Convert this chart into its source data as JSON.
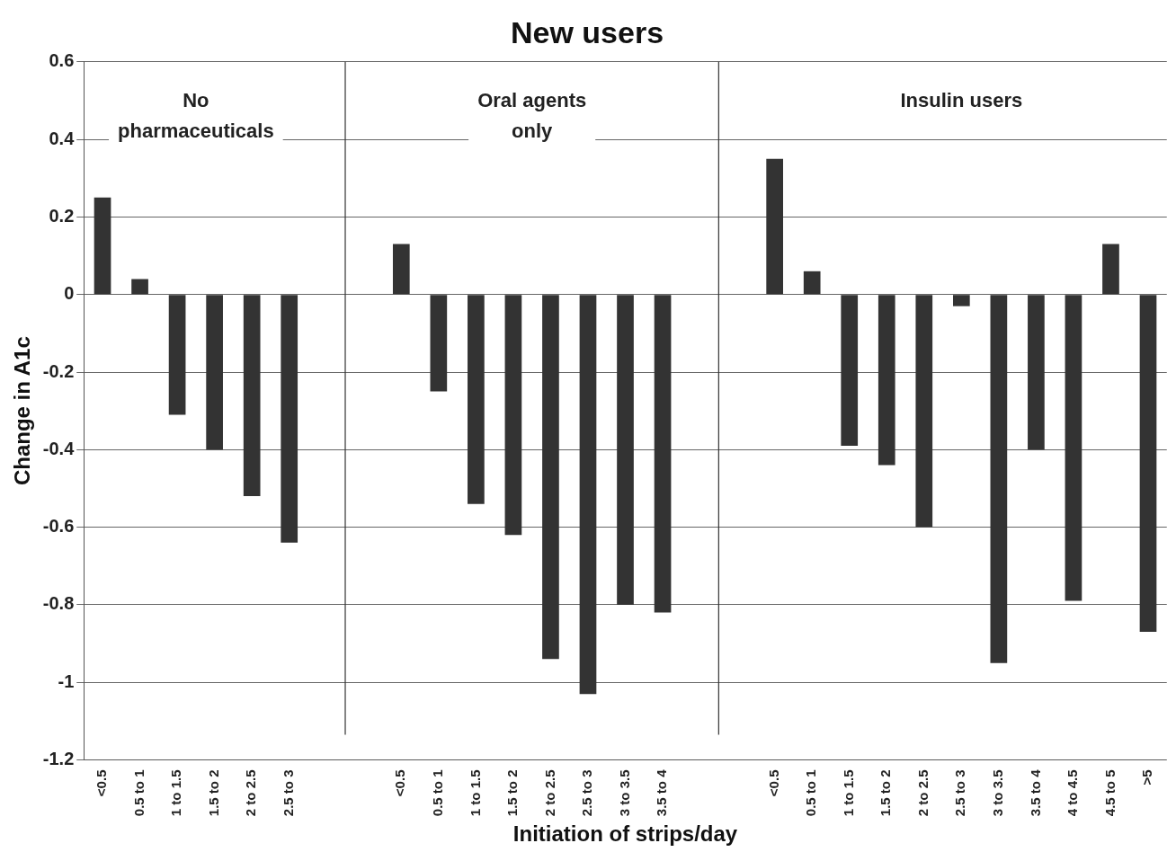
{
  "chart_data": {
    "type": "bar",
    "title": "New users",
    "xlabel": "Initiation of strips/day",
    "ylabel": "Change in A1c",
    "categories": [
      "<0.5",
      "0.5 to 1",
      "1 to 1.5",
      "1.5 to 2",
      "2 to 2.5",
      "2.5 to 3",
      null,
      null,
      "<0.5",
      "0.5 to 1",
      "1 to 1.5",
      "1.5 to 2",
      "2 to 2.5",
      "2.5 to 3",
      "3 to 3.5",
      "3.5 to 4",
      null,
      null,
      "<0.5",
      "0.5 to 1",
      "1 to 1.5",
      "1.5 to 2",
      "2 to 2.5",
      "2.5 to 3",
      "3 to 3.5",
      "3.5 to 4",
      "4 to 4.5",
      "4.5 to 5",
      ">5"
    ],
    "values": [
      0.25,
      0.04,
      -0.31,
      -0.4,
      -0.52,
      -0.64,
      null,
      null,
      0.13,
      -0.25,
      -0.54,
      -0.62,
      -0.94,
      -1.03,
      -0.8,
      -0.82,
      null,
      null,
      0.35,
      0.06,
      -0.39,
      -0.44,
      -0.6,
      -0.03,
      -0.95,
      -0.4,
      -0.79,
      0.13,
      -0.87
    ],
    "color": "#333333",
    "annotations": [
      "No\npharmaceuticals",
      "Oral agents\nonly",
      "Insulin users"
    ],
    "ylim": [
      -1.2,
      0.6
    ],
    "yticks": [
      0.6,
      0.4,
      0.2,
      0,
      -0.2,
      -0.4,
      -0.6,
      -0.8,
      -1,
      -1.2
    ],
    "grid": "y"
  }
}
